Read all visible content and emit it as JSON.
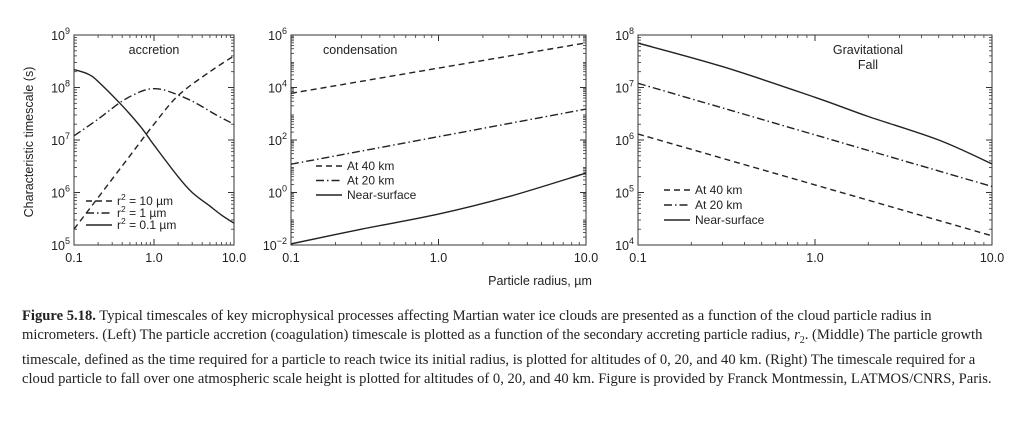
{
  "y_axis_label": "Characteristic timescale (s)",
  "x_axis_label": "Particle radius, µm",
  "chart_data": [
    {
      "type": "line",
      "title": "accretion",
      "x_scale": "log",
      "y_scale": "log",
      "xlim": [
        0.1,
        10.0
      ],
      "ylim": [
        100000,
        1000000000
      ],
      "x_ticks": [
        "0.1",
        "1.0",
        "10.0"
      ],
      "y_ticks": [
        {
          "base": "10",
          "exp": "5"
        },
        {
          "base": "10",
          "exp": "6"
        },
        {
          "base": "10",
          "exp": "7"
        },
        {
          "base": "10",
          "exp": "8"
        },
        {
          "base": "10",
          "exp": "9"
        }
      ],
      "legend_location": "bottom-left",
      "series": [
        {
          "name": "r² = 10 µm",
          "label_prefix": "r",
          "label_sup": "2",
          "label_rest": " = 10 µm",
          "style": "dashed",
          "x": [
            0.1,
            0.2,
            0.5,
            1.0,
            2.0,
            5.0,
            10.0
          ],
          "y": [
            200000,
            800000,
            5000000,
            20000000,
            70000000,
            200000000,
            400000000
          ]
        },
        {
          "name": "r² = 1 µm",
          "label_prefix": "r",
          "label_sup": "2",
          "label_rest": " = 1 µm",
          "style": "dashdot",
          "x": [
            0.1,
            0.2,
            0.4,
            0.7,
            1.0,
            1.5,
            3.0,
            6.0,
            10.0
          ],
          "y": [
            12000000,
            25000000,
            55000000,
            85000000,
            95000000,
            85000000,
            55000000,
            30000000,
            20000000
          ]
        },
        {
          "name": "r² = 0.1 µm",
          "label_prefix": "r",
          "label_sup": "2",
          "label_rest": " = 0.1 µm",
          "style": "solid",
          "x": [
            0.1,
            0.15,
            0.2,
            0.4,
            0.7,
            1.0,
            2.0,
            3.0,
            5.0,
            7.0,
            10.0
          ],
          "y": [
            220000000,
            180000000,
            130000000,
            45000000,
            17000000,
            8000000,
            2000000,
            1000000,
            550000,
            370000,
            260000
          ]
        }
      ]
    },
    {
      "type": "line",
      "title": "condensation",
      "x_scale": "log",
      "y_scale": "log",
      "xlim": [
        0.1,
        10.0
      ],
      "ylim": [
        0.01,
        1000000
      ],
      "x_ticks": [
        "0.1",
        "1.0",
        "10.0"
      ],
      "y_ticks": [
        {
          "base": "10",
          "exp": "−2"
        },
        {
          "base": "10",
          "exp": "0"
        },
        {
          "base": "10",
          "exp": "2"
        },
        {
          "base": "10",
          "exp": "4"
        },
        {
          "base": "10",
          "exp": "6"
        }
      ],
      "legend_location": "left-middle",
      "series": [
        {
          "name": "At 40 km",
          "style": "dashed",
          "x": [
            0.1,
            10.0
          ],
          "y": [
            6000,
            500000
          ]
        },
        {
          "name": "At 20 km",
          "style": "dashdot",
          "x": [
            0.1,
            10.0
          ],
          "y": [
            12,
            1500
          ]
        },
        {
          "name": "Near-surface",
          "style": "solid",
          "x": [
            0.1,
            0.3,
            1.0,
            3.0,
            10.0
          ],
          "y": [
            0.011,
            0.04,
            0.15,
            0.7,
            5.5
          ]
        }
      ]
    },
    {
      "type": "line",
      "title": "Gravitational\nFall",
      "title_lines": [
        "Gravitational",
        "Fall"
      ],
      "x_scale": "log",
      "y_scale": "log",
      "xlim": [
        0.1,
        10.0
      ],
      "ylim": [
        10000,
        100000000
      ],
      "x_ticks": [
        "0.1",
        "1.0",
        "10.0"
      ],
      "y_ticks": [
        {
          "base": "10",
          "exp": "4"
        },
        {
          "base": "10",
          "exp": "5"
        },
        {
          "base": "10",
          "exp": "6"
        },
        {
          "base": "10",
          "exp": "7"
        },
        {
          "base": "10",
          "exp": "8"
        }
      ],
      "legend_location": "bottom-left",
      "series": [
        {
          "name": "At 40 km",
          "style": "dashed",
          "x": [
            0.1,
            10.0
          ],
          "y": [
            1300000,
            15000
          ]
        },
        {
          "name": "At 20 km",
          "style": "dashdot",
          "x": [
            0.1,
            10.0
          ],
          "y": [
            12000000,
            130000
          ]
        },
        {
          "name": "Near-surface",
          "style": "solid",
          "x": [
            0.1,
            0.3,
            1.0,
            2.0,
            5.0,
            10.0
          ],
          "y": [
            70000000,
            25000000,
            6500000,
            2800000,
            1000000,
            350000
          ]
        }
      ]
    }
  ],
  "caption": {
    "label": "Figure 5.18.",
    "text_before": " Typical timescales of key microphysical processes affecting Martian water ice clouds are presented as a function of the cloud particle radius in micrometers. (Left) The particle accretion (coagulation) timescale is plotted as a function of the secondary accreting particle radius, ",
    "var_main": "r",
    "var_sub": "2",
    "text_after": ". (Middle) The particle growth timescale, defined as the time required for a particle to reach twice its initial radius, is plotted for altitudes of 0, 20, and 40 km. (Right) The timescale required for a cloud particle to fall over one atmospheric scale height is plotted for altitudes of 0, 20, and 40 km. Figure is provided by Franck Montmessin, LATMOS/CNRS, Paris."
  }
}
